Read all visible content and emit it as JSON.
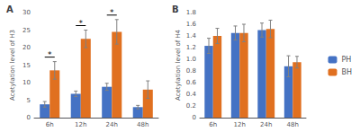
{
  "chart_data": [
    {
      "type": "bar",
      "title": "A",
      "ylabel": "Acetylation level of H3",
      "categories": [
        "6h",
        "12h",
        "24h",
        "48h"
      ],
      "series": [
        {
          "name": "PH",
          "color": "#4472C4",
          "values": [
            3.8,
            6.8,
            8.8,
            3.0
          ],
          "errors": [
            0.8,
            0.8,
            1.0,
            0.5
          ]
        },
        {
          "name": "BH",
          "color": "#E07020",
          "values": [
            13.5,
            22.5,
            24.5,
            8.0
          ],
          "errors": [
            2.5,
            2.5,
            3.5,
            2.5
          ]
        }
      ],
      "ylim": [
        0,
        30
      ],
      "yticks": [
        0,
        5,
        10,
        15,
        20,
        25,
        30
      ],
      "grid": false,
      "annotations": [
        {
          "category": "6h",
          "text": "*"
        },
        {
          "category": "12h",
          "text": "*"
        },
        {
          "category": "24h",
          "text": "*"
        }
      ]
    },
    {
      "type": "bar",
      "title": "B",
      "ylabel": "Acetylation level of H4",
      "categories": [
        "6h",
        "12h",
        "24h",
        "48h"
      ],
      "series": [
        {
          "name": "PH",
          "color": "#4472C4",
          "values": [
            1.23,
            1.45,
            1.5,
            0.88
          ],
          "errors": [
            0.13,
            0.12,
            0.12,
            0.18
          ]
        },
        {
          "name": "BH",
          "color": "#E07020",
          "values": [
            1.4,
            1.45,
            1.52,
            0.95
          ],
          "errors": [
            0.13,
            0.15,
            0.15,
            0.1
          ]
        }
      ],
      "ylim": [
        0,
        1.8
      ],
      "yticks": [
        0,
        0.2,
        0.4,
        0.6,
        0.8,
        {
          "value": 1.0,
          "label": "1.0"
        },
        1.2,
        1.4,
        1.6,
        1.8
      ],
      "grid": false,
      "legend": "right"
    }
  ]
}
